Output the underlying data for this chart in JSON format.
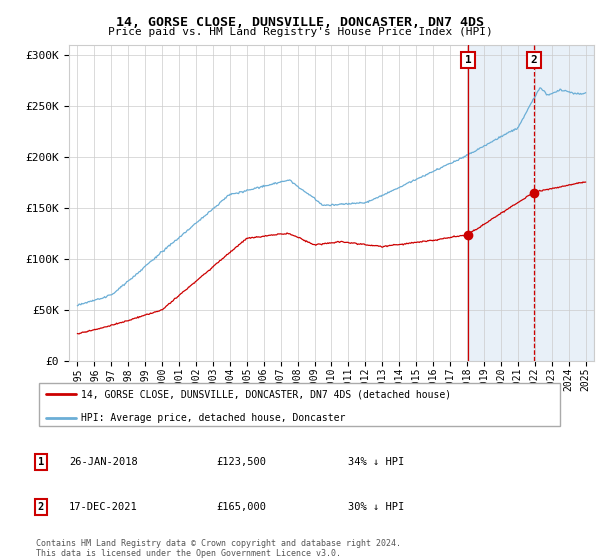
{
  "title": "14, GORSE CLOSE, DUNSVILLE, DONCASTER, DN7 4DS",
  "subtitle": "Price paid vs. HM Land Registry's House Price Index (HPI)",
  "legend_line1": "14, GORSE CLOSE, DUNSVILLE, DONCASTER, DN7 4DS (detached house)",
  "legend_line2": "HPI: Average price, detached house, Doncaster",
  "annotation1_label": "1",
  "annotation1_date": "26-JAN-2018",
  "annotation1_price": "£123,500",
  "annotation1_hpi": "34% ↓ HPI",
  "annotation2_label": "2",
  "annotation2_date": "17-DEC-2021",
  "annotation2_price": "£165,000",
  "annotation2_hpi": "30% ↓ HPI",
  "footnote": "Contains HM Land Registry data © Crown copyright and database right 2024.\nThis data is licensed under the Open Government Licence v3.0.",
  "hpi_color": "#6baed6",
  "price_color": "#cc0000",
  "marker1_x": 2018.07,
  "marker2_x": 2021.96,
  "marker1_y": 123500,
  "marker2_y": 165000,
  "ylim": [
    0,
    310000
  ],
  "xlim": [
    1994.5,
    2025.5
  ],
  "yticks": [
    0,
    50000,
    100000,
    150000,
    200000,
    250000,
    300000
  ],
  "ytick_labels": [
    "£0",
    "£50K",
    "£100K",
    "£150K",
    "£200K",
    "£250K",
    "£300K"
  ],
  "xticks": [
    1995,
    1996,
    1997,
    1998,
    1999,
    2000,
    2001,
    2002,
    2003,
    2004,
    2005,
    2006,
    2007,
    2008,
    2009,
    2010,
    2011,
    2012,
    2013,
    2014,
    2015,
    2016,
    2017,
    2018,
    2019,
    2020,
    2021,
    2022,
    2023,
    2024,
    2025
  ],
  "shade_start": 2018.07,
  "shade_end": 2025.5
}
